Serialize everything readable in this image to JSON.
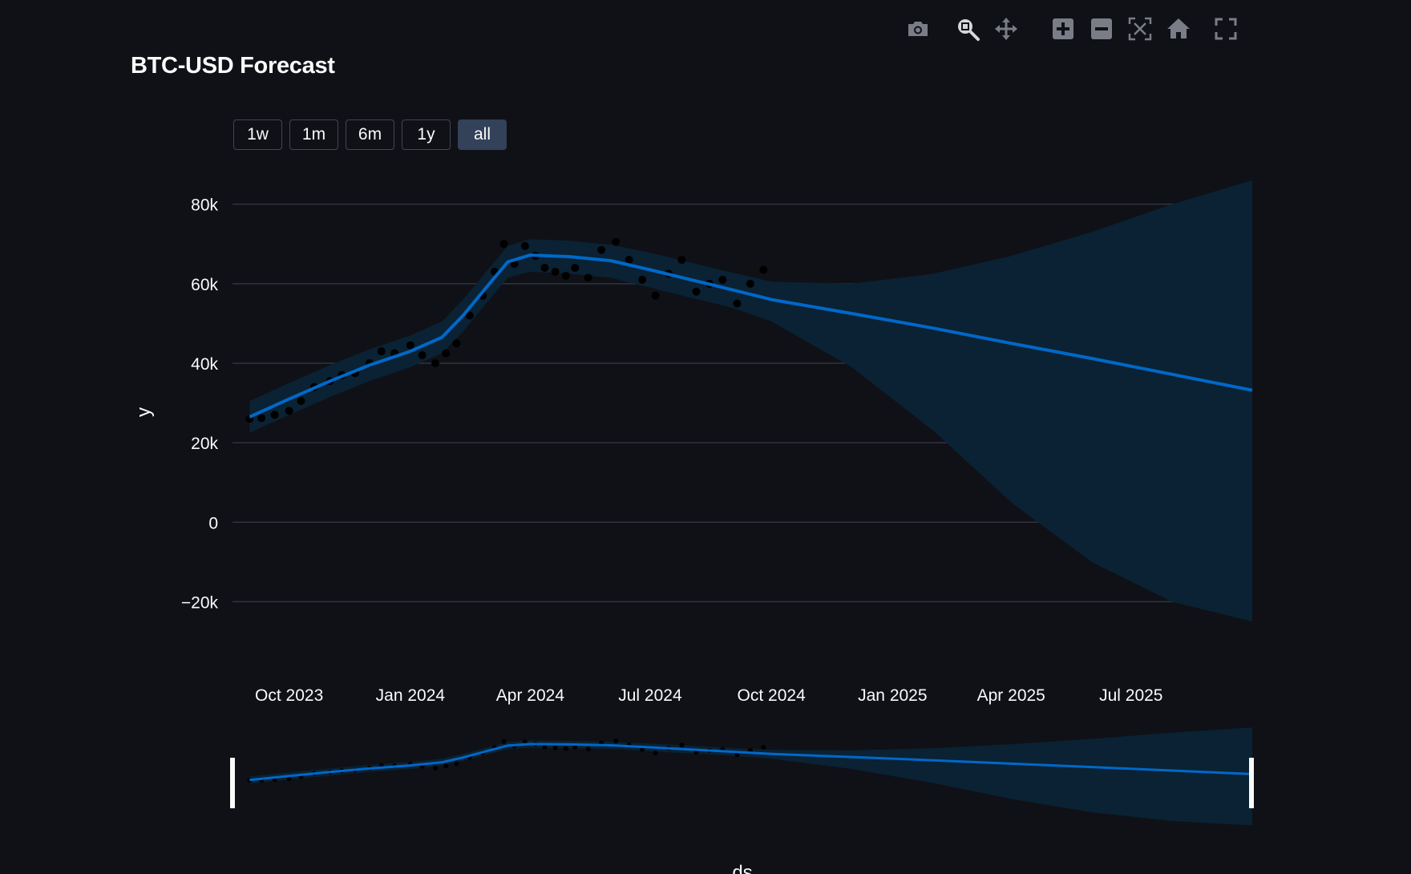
{
  "toolbar": {
    "icons": [
      "camera-icon",
      "zoom-icon",
      "pan-icon",
      "zoom-in-icon",
      "zoom-out-icon",
      "autoscale-icon",
      "reset-axes-icon",
      "fullscreen-icon"
    ]
  },
  "chart_data": {
    "type": "line",
    "title": "BTC-USD Forecast",
    "xlabel": "ds",
    "ylabel": "y",
    "range_buttons": [
      "1w",
      "1m",
      "6m",
      "1y",
      "all"
    ],
    "active_range": "all",
    "x_ticks": [
      "Oct 2023",
      "Jan 2024",
      "Apr 2024",
      "Jul 2024",
      "Oct 2024",
      "Jan 2025",
      "Apr 2025",
      "Jul 2025"
    ],
    "y_ticks": [
      -20000,
      0,
      20000,
      40000,
      60000,
      80000
    ],
    "y_tick_labels": [
      "−20k",
      "0",
      "20k",
      "40k",
      "60k",
      "80k"
    ],
    "xlim": [
      "2023-08-19",
      "2025-10-01"
    ],
    "ylim": [
      -30000,
      88000
    ],
    "grid": true,
    "colors": {
      "background": "#0f1117",
      "forecast_line": "#0068c9",
      "uncertainty_band": "#0a2233",
      "observed_points": "#000000",
      "grid": "#31333f"
    },
    "forecast": {
      "x": [
        "2023-09-01",
        "2023-10-01",
        "2023-11-01",
        "2023-12-01",
        "2024-01-01",
        "2024-01-25",
        "2024-02-10",
        "2024-03-01",
        "2024-03-15",
        "2024-04-01",
        "2024-05-01",
        "2024-06-01",
        "2024-07-01",
        "2024-08-01",
        "2024-09-01",
        "2024-10-01",
        "2024-12-01",
        "2025-02-01",
        "2025-04-01",
        "2025-06-01",
        "2025-08-01",
        "2025-10-01"
      ],
      "yhat": [
        26500,
        31000,
        35500,
        39500,
        43000,
        46500,
        52000,
        60000,
        65500,
        67200,
        66800,
        65800,
        63500,
        61000,
        58500,
        56000,
        52500,
        48800,
        45000,
        41200,
        37200,
        33200
      ],
      "yhat_lower": [
        22500,
        27000,
        31500,
        35500,
        39000,
        42500,
        48000,
        56000,
        61500,
        63000,
        62500,
        61500,
        59000,
        56500,
        54000,
        50500,
        39000,
        23000,
        5000,
        -10000,
        -20000,
        -25000
      ],
      "yhat_upper": [
        30500,
        35000,
        39500,
        43500,
        47000,
        50500,
        56000,
        64000,
        69500,
        71200,
        70800,
        69800,
        67800,
        65300,
        62800,
        60500,
        60000,
        62500,
        67000,
        73000,
        80000,
        86000
      ]
    },
    "observed": {
      "x": [
        "2023-09-01",
        "2023-09-10",
        "2023-09-20",
        "2023-10-01",
        "2023-10-10",
        "2023-10-20",
        "2023-11-01",
        "2023-11-10",
        "2023-11-20",
        "2023-12-01",
        "2023-12-10",
        "2023-12-20",
        "2024-01-01",
        "2024-01-10",
        "2024-01-20",
        "2024-01-28",
        "2024-02-05",
        "2024-02-15",
        "2024-02-25",
        "2024-03-05",
        "2024-03-12",
        "2024-03-20",
        "2024-03-28",
        "2024-04-05",
        "2024-04-12",
        "2024-04-20",
        "2024-04-28",
        "2024-05-05",
        "2024-05-15",
        "2024-05-25",
        "2024-06-05",
        "2024-06-15",
        "2024-06-25",
        "2024-07-05",
        "2024-07-15",
        "2024-07-25",
        "2024-08-05",
        "2024-08-15",
        "2024-08-25",
        "2024-09-05",
        "2024-09-15",
        "2024-09-25"
      ],
      "y": [
        26000,
        26200,
        27000,
        28000,
        30500,
        34000,
        35500,
        37000,
        37500,
        40000,
        43000,
        42500,
        44500,
        42000,
        40000,
        42500,
        45000,
        52000,
        57000,
        63000,
        70000,
        65000,
        69500,
        67000,
        64000,
        63000,
        62000,
        64000,
        61500,
        68500,
        70500,
        66000,
        61000,
        57000,
        62500,
        66000,
        58000,
        60000,
        61000,
        55000,
        60000,
        63500
      ]
    }
  }
}
